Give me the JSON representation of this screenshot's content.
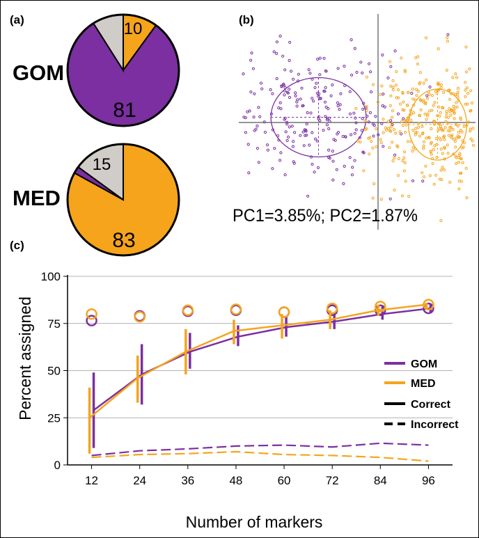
{
  "colors": {
    "GOM": "#7b2fa0",
    "MED": "#f5a41c",
    "other": "#d0ccc8",
    "frame": "#000000",
    "grid": "#999999"
  },
  "panels": {
    "a": "(a)",
    "b": "(b)",
    "c": "(c)"
  },
  "chart_data": [
    {
      "type": "pie",
      "panel": "(a)",
      "label": "GOM",
      "slices": [
        {
          "category": "MED",
          "value": 10,
          "label": "10"
        },
        {
          "category": "GOM",
          "value": 81,
          "label": "81"
        },
        {
          "category": "other",
          "value": 9,
          "label": ""
        }
      ]
    },
    {
      "type": "pie",
      "panel": "(a)",
      "label": "MED",
      "slices": [
        {
          "category": "MED",
          "value": 83,
          "label": "83"
        },
        {
          "category": "GOM",
          "value": 2,
          "label": ""
        },
        {
          "category": "other",
          "value": 15,
          "label": "15"
        }
      ]
    },
    {
      "type": "scatter",
      "panel": "(b)",
      "caption": "PC1=3.85%; PC2=1.87%",
      "series": [
        {
          "name": "GOM",
          "n_points": 250,
          "center": [
            -0.45,
            0.05
          ],
          "spread": [
            0.42,
            0.32
          ],
          "ellipse_radius": [
            0.36,
            0.38
          ]
        },
        {
          "name": "MED",
          "n_points": 380,
          "center": [
            0.45,
            -0.02
          ],
          "spread": [
            0.26,
            0.3
          ],
          "ellipse_radius": [
            0.22,
            0.34
          ]
        }
      ]
    },
    {
      "type": "line",
      "panel": "(c)",
      "xlabel": "Number of markers",
      "ylabel": "Percent assigned",
      "x": [
        12,
        24,
        36,
        48,
        60,
        72,
        84,
        96
      ],
      "yticks": [
        "0",
        "25",
        "50",
        "75",
        "100"
      ],
      "ylim": [
        0,
        100
      ],
      "grid": true,
      "legend": {
        "position": "right",
        "entries": [
          {
            "label": "GOM",
            "style": "GOM"
          },
          {
            "label": "MED",
            "style": "MED"
          },
          {
            "label": "Correct",
            "style": "solid"
          },
          {
            "label": "Incorrect",
            "style": "dashed"
          }
        ]
      },
      "series": [
        {
          "name": "GOM",
          "kind": "Correct",
          "values": [
            29,
            48,
            60,
            68,
            73,
            76,
            80,
            83
          ],
          "error_low": [
            9,
            32,
            51,
            63,
            68,
            72,
            77,
            81
          ],
          "error_high": [
            49,
            64,
            70,
            74,
            79,
            81,
            84,
            85
          ],
          "circle": [
            76.5,
            79,
            81.5,
            82,
            81,
            82,
            82,
            83
          ]
        },
        {
          "name": "MED",
          "kind": "Correct",
          "values": [
            25,
            46,
            60,
            71,
            74,
            77,
            82,
            85
          ],
          "error_low": [
            6,
            33,
            48,
            64,
            67,
            72,
            79,
            83
          ],
          "error_high": [
            41,
            58,
            72,
            77,
            80,
            82,
            85,
            86
          ],
          "circle": [
            80,
            78.5,
            82,
            82.5,
            81,
            83,
            84,
            85
          ]
        },
        {
          "name": "GOM",
          "kind": "Incorrect",
          "values": [
            5,
            7.5,
            8.5,
            10,
            10.5,
            9.5,
            11.5,
            10.5
          ]
        },
        {
          "name": "MED",
          "kind": "Incorrect",
          "values": [
            4,
            5.5,
            6,
            7,
            5.5,
            5,
            4,
            2
          ]
        }
      ]
    }
  ]
}
